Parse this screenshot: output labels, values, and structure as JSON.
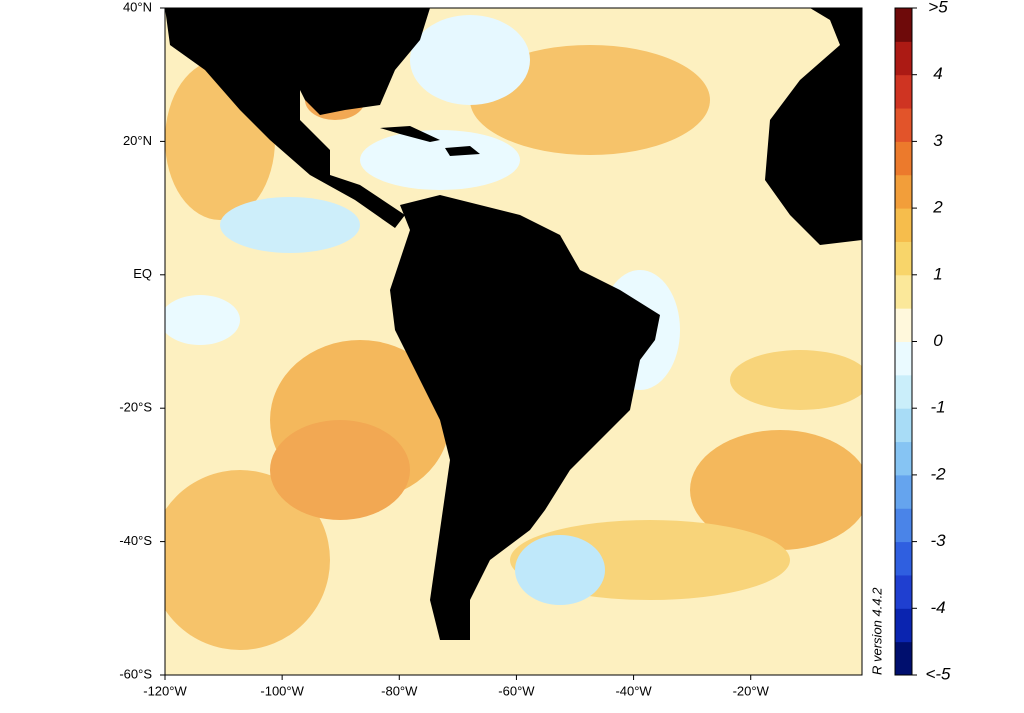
{
  "chart_data": {
    "type": "map",
    "xlim": [
      -120,
      -1
    ],
    "ylim": [
      -60,
      40
    ],
    "xticks": [
      {
        "value": -120,
        "label": "-120°W"
      },
      {
        "value": -100,
        "label": "-100°W"
      },
      {
        "value": -80,
        "label": "-80°W"
      },
      {
        "value": -60,
        "label": "-60°W"
      },
      {
        "value": -40,
        "label": "-40°W"
      },
      {
        "value": -20,
        "label": "-20°W"
      }
    ],
    "yticks": [
      {
        "value": 40,
        "label": "40°N"
      },
      {
        "value": 20,
        "label": "20°N"
      },
      {
        "value": 0,
        "label": "EQ"
      },
      {
        "value": -20,
        "label": "-20°S"
      },
      {
        "value": -40,
        "label": "-40°S"
      },
      {
        "value": -60,
        "label": "-60°S"
      }
    ],
    "colorbar": {
      "lim": [
        -5,
        5
      ],
      "ticks": [
        {
          "value": 5,
          "label": ">5"
        },
        4,
        3,
        2,
        1,
        0,
        -1,
        -2,
        -3,
        -4,
        {
          "value": -5,
          "label": "<-5"
        }
      ],
      "colors": [
        "#000f6e",
        "#0a24b0",
        "#1f3fd0",
        "#2f5fe0",
        "#4a84e8",
        "#65a4ee",
        "#86c4f3",
        "#a8dcf6",
        "#caeefa",
        "#eafaff",
        "#fff8dc",
        "#fbe89a",
        "#f8d56a",
        "#f6bd4c",
        "#f29e3a",
        "#ec7a2c",
        "#e2542a",
        "#cf3422",
        "#ac1a14",
        "#6e0a0a"
      ]
    },
    "note": "R version 4.4.2"
  }
}
